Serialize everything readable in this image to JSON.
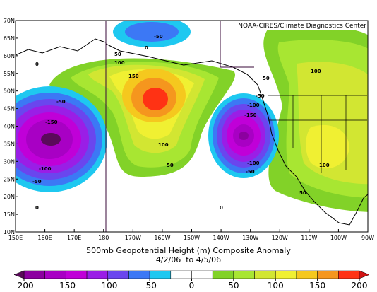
{
  "header": {
    "credit": "NOAA-CIRES/Climate Diagnostics Center"
  },
  "map": {
    "lat_labels": [
      "70N",
      "65N",
      "60N",
      "55N",
      "50N",
      "45N",
      "40N",
      "35N",
      "30N",
      "25N",
      "20N",
      "15N",
      "10N"
    ],
    "lon_labels": [
      "150E",
      "160E",
      "170E",
      "180",
      "170W",
      "160W",
      "150W",
      "140W",
      "130W",
      "120W",
      "110W",
      "100W",
      "90W"
    ],
    "contour_labels": [
      "-50",
      "0",
      "50",
      "100",
      "150",
      "100",
      "50",
      "-50",
      "-150",
      "-100",
      "-50",
      "0",
      "0",
      "50",
      "-50",
      "-100",
      "-150",
      "-100",
      "-50",
      "0",
      "50",
      "100",
      "100"
    ]
  },
  "caption": {
    "line1": "500mb Geopotential Height (m) Composite Anomaly",
    "line2": "4/2/06  to 4/5/06"
  },
  "colorbar": {
    "clim": [
      -200,
      200
    ],
    "ticks": [
      -200,
      -150,
      -100,
      -50,
      0,
      50,
      100,
      150,
      200
    ],
    "colors": [
      "#8c00a0",
      "#a800c4",
      "#c000d8",
      "#9a1ee6",
      "#6a46ee",
      "#3c78f5",
      "#1ec8f0",
      "#ffffff",
      "#ffffff",
      "#82d228",
      "#a8e632",
      "#d2e632",
      "#f0f032",
      "#f5c81e",
      "#f5961e",
      "#ff3214"
    ],
    "low_color": "#5a0a5a",
    "high_color": "#d21414"
  }
}
